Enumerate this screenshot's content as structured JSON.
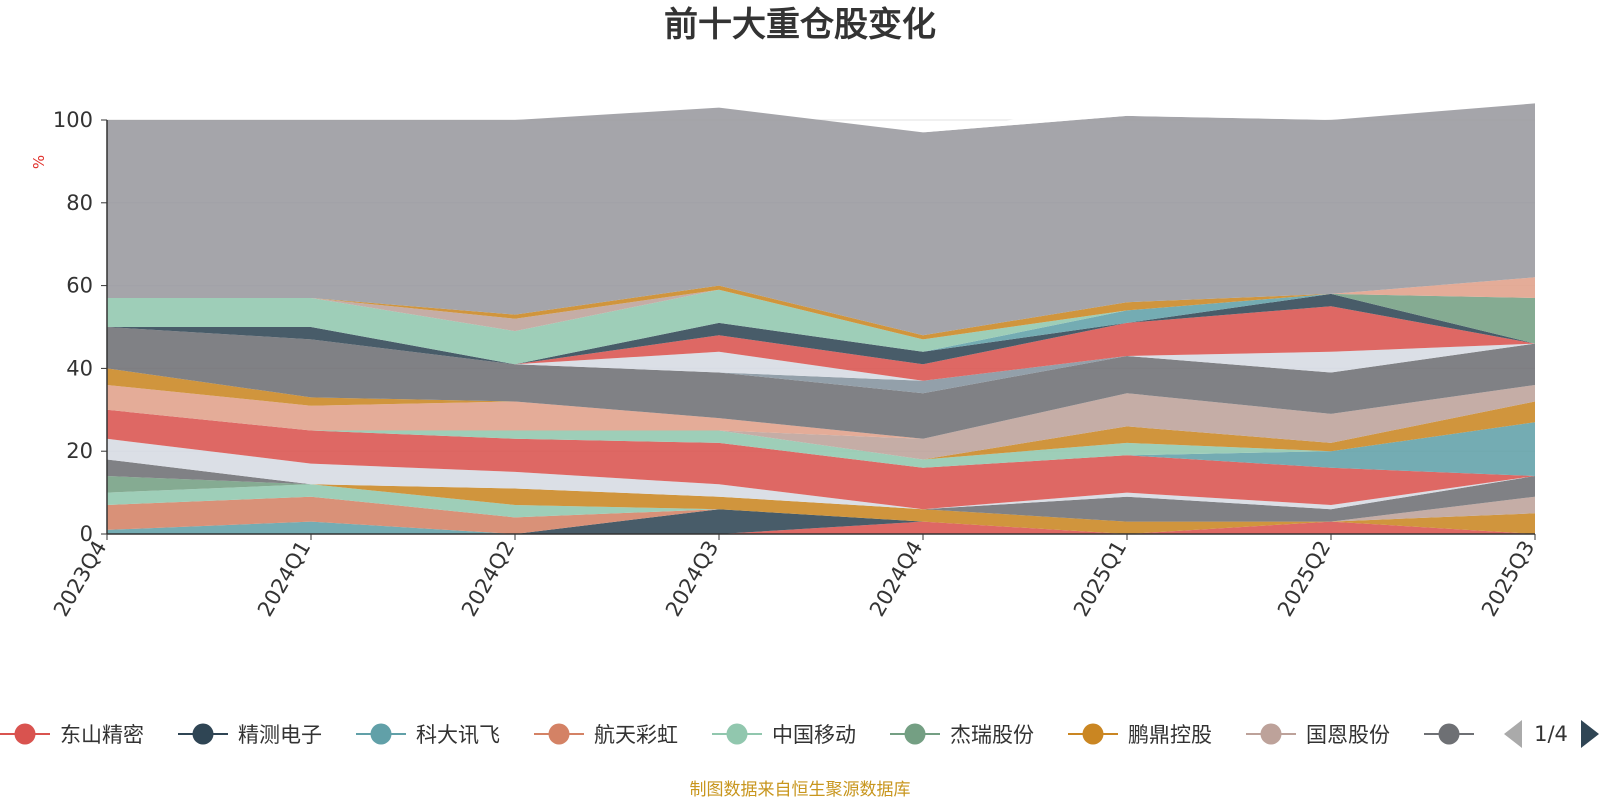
{
  "chart_data": {
    "type": "area",
    "title": "前十大重仓股变化",
    "ylabel": "%",
    "ylim": [
      0,
      100
    ],
    "yticks": [
      0,
      20,
      40,
      60,
      80,
      100
    ],
    "grid": true,
    "legend_position": "bottom",
    "x": [
      "2023Q4",
      "2024Q1",
      "2024Q2",
      "2024Q3",
      "2024Q4",
      "2025Q1",
      "2025Q2",
      "2025Q3"
    ],
    "series": [
      {
        "name": "东山精密",
        "color": "#d9534f",
        "values": [
          0,
          0,
          0,
          0,
          3,
          0,
          3,
          0
        ]
      },
      {
        "name": "精测电子",
        "color": "#2f4554",
        "values": [
          0,
          0,
          0,
          6,
          0,
          0,
          0,
          0
        ]
      },
      {
        "name": "科大讯飞",
        "color": "#61a0a8",
        "values": [
          1,
          3,
          0,
          0,
          0,
          0,
          0,
          0
        ]
      },
      {
        "name": "航天彩虹",
        "color": "#d48265",
        "values": [
          6,
          6,
          4,
          0,
          0,
          0,
          0,
          0
        ]
      },
      {
        "name": "中国移动",
        "color": "#91c7ae",
        "values": [
          3,
          3,
          3,
          0,
          0,
          0,
          0,
          0
        ]
      },
      {
        "name": "杰瑞股份",
        "color": "#749f83",
        "values": [
          4,
          0,
          0,
          0,
          0,
          0,
          0,
          0
        ]
      },
      {
        "name": "鹏鼎控股",
        "color": "#ca8622",
        "values": [
          0,
          0,
          4,
          3,
          3,
          3,
          0,
          5
        ]
      },
      {
        "name": "国恩股份",
        "color": "#bda29a",
        "values": [
          0,
          0,
          0,
          0,
          0,
          0,
          0,
          4
        ]
      },
      {
        "name": "",
        "color": "#6e7074",
        "values": [
          4,
          0,
          0,
          0,
          0,
          6,
          3,
          5
        ]
      },
      {
        "name": "",
        "color": "#d6dbe2",
        "values": [
          5,
          5,
          4,
          3,
          0,
          1,
          1,
          0
        ]
      },
      {
        "name": "",
        "color": "#d9534f",
        "values": [
          7,
          8,
          8,
          10,
          10,
          9,
          9,
          0
        ]
      },
      {
        "name": "",
        "color": "#61a0a8",
        "values": [
          0,
          0,
          0,
          0,
          0,
          0,
          4,
          13
        ]
      },
      {
        "name": "",
        "color": "#91c7ae",
        "values": [
          0,
          0,
          2,
          3,
          2,
          3,
          0,
          0
        ]
      },
      {
        "name": "",
        "color": "#ca8622",
        "values": [
          0,
          0,
          0,
          0,
          0,
          4,
          2,
          5
        ]
      },
      {
        "name": "",
        "color": "#bda29a",
        "values": [
          0,
          0,
          0,
          0,
          5,
          8,
          7,
          4
        ]
      },
      {
        "name": "",
        "color": "#e0a08a",
        "values": [
          6,
          6,
          7,
          3,
          0,
          0,
          0,
          0
        ]
      },
      {
        "name": "",
        "color": "#ca8622",
        "values": [
          4,
          2,
          0,
          0,
          0,
          0,
          0,
          0
        ]
      },
      {
        "name": "",
        "color": "#6e7074",
        "values": [
          10,
          14,
          9,
          11,
          11,
          9,
          10,
          10
        ]
      },
      {
        "name": "",
        "color": "#84939e",
        "values": [
          0,
          0,
          0,
          0,
          3,
          0,
          0,
          0
        ]
      },
      {
        "name": "",
        "color": "#d6dbe2",
        "values": [
          0,
          0,
          0,
          5,
          0,
          0,
          5,
          0
        ]
      },
      {
        "name": "",
        "color": "#d9534f",
        "values": [
          0,
          0,
          0,
          4,
          4,
          8,
          11,
          0
        ]
      },
      {
        "name": "",
        "color": "#2f4554",
        "values": [
          0,
          3,
          0,
          3,
          3,
          0,
          3,
          0
        ]
      },
      {
        "name": "",
        "color": "#61a0a8",
        "values": [
          0,
          0,
          0,
          0,
          0,
          3,
          0,
          0
        ]
      },
      {
        "name": "",
        "color": "#91c7ae",
        "values": [
          7,
          7,
          8,
          8,
          3,
          0,
          0,
          0
        ]
      },
      {
        "name": "",
        "color": "#749f83",
        "values": [
          0,
          0,
          0,
          0,
          0,
          0,
          0,
          11
        ]
      },
      {
        "name": "",
        "color": "#e0a08a",
        "values": [
          0,
          0,
          0,
          0,
          0,
          0,
          0,
          5
        ]
      },
      {
        "name": "",
        "color": "#bda29a",
        "values": [
          0,
          0,
          3,
          0,
          0,
          0,
          0,
          0
        ]
      },
      {
        "name": "",
        "color": "#ca8622",
        "values": [
          0,
          0,
          1,
          1,
          1,
          2,
          0,
          0
        ]
      },
      {
        "name": "",
        "color": "#98999e",
        "values": [
          43,
          43,
          47,
          43,
          49,
          45,
          42,
          42
        ]
      },
      {
        "name": "",
        "color": "#ffffff",
        "values": [
          0,
          0,
          0,
          0,
          0,
          3,
          0,
          0
        ]
      }
    ]
  },
  "legend": {
    "items": [
      {
        "label": "东山精密",
        "color": "#d9534f"
      },
      {
        "label": "精测电子",
        "color": "#2f4554"
      },
      {
        "label": "科大讯飞",
        "color": "#61a0a8"
      },
      {
        "label": "航天彩虹",
        "color": "#d48265"
      },
      {
        "label": "中国移动",
        "color": "#91c7ae"
      },
      {
        "label": "杰瑞股份",
        "color": "#749f83"
      },
      {
        "label": "鹏鼎控股",
        "color": "#ca8622"
      },
      {
        "label": "国恩股份",
        "color": "#bda29a"
      },
      {
        "label": "",
        "color": "#6e7074"
      }
    ],
    "page_indicator": "1/4",
    "prev_icon": "triangle-left-icon",
    "next_icon": "triangle-right-icon"
  },
  "footer": {
    "source": "制图数据来自恒生聚源数据库"
  }
}
